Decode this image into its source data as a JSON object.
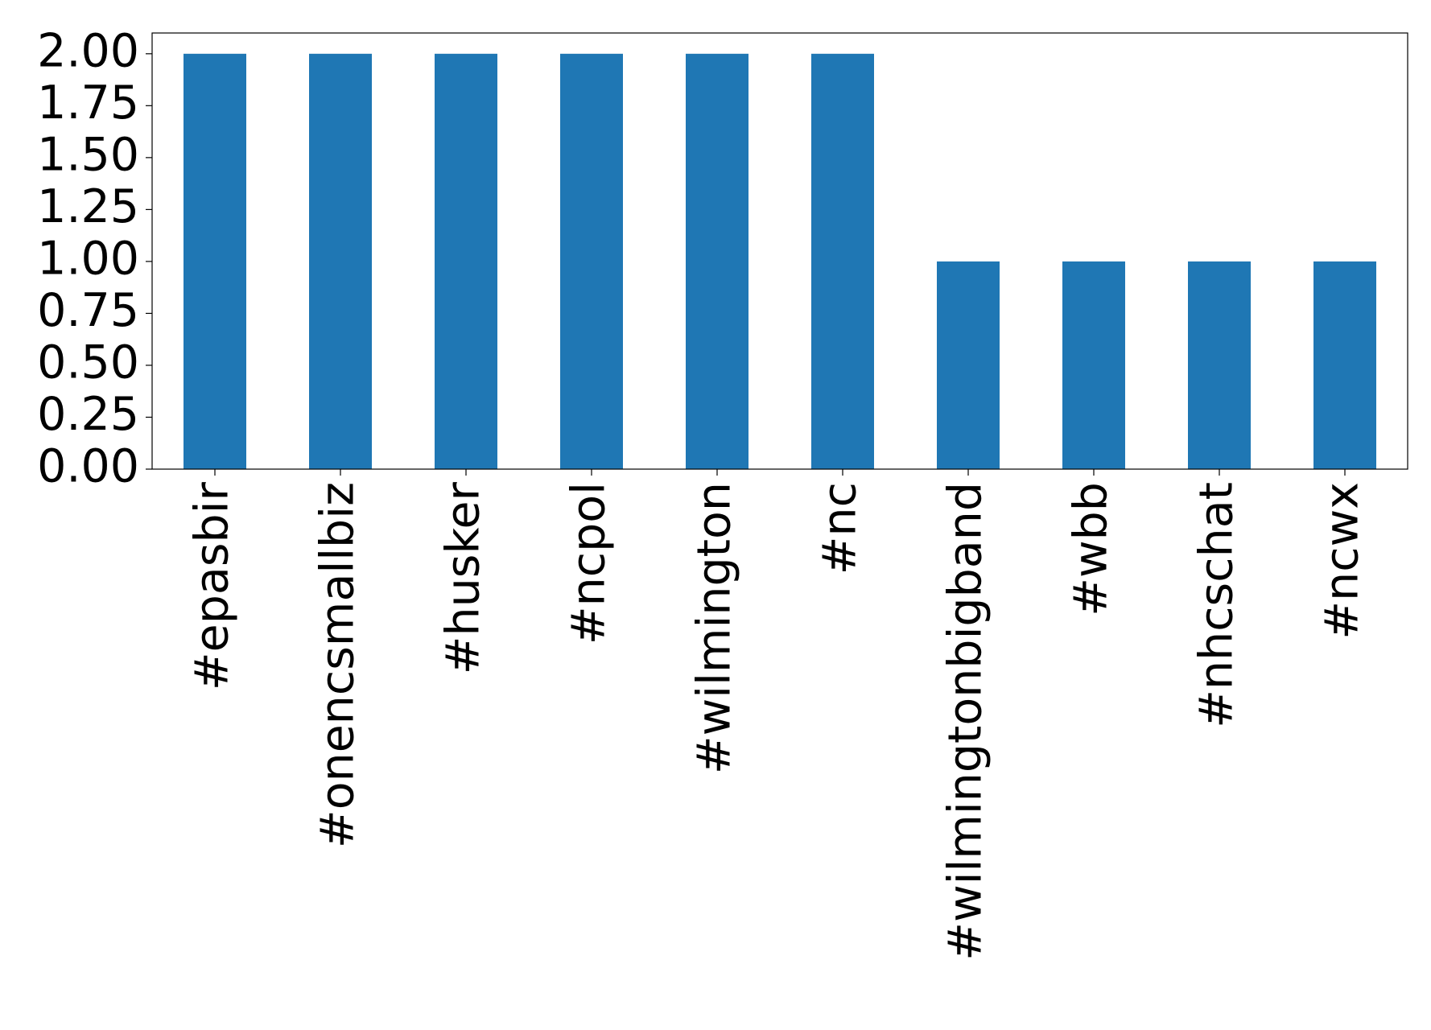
{
  "chart_data": {
    "type": "bar",
    "categories": [
      "#epasbir",
      "#onencsmallbiz",
      "#husker",
      "#ncpol",
      "#wilmington",
      "#nc",
      "#wilmingtonbigband",
      "#wbb",
      "#nhcschat",
      "#ncwx"
    ],
    "values": [
      2,
      2,
      2,
      2,
      2,
      2,
      1,
      1,
      1,
      1
    ],
    "color": "#1f77b4",
    "ylim": [
      0,
      2.1
    ],
    "yticks": [
      {
        "value": 0,
        "label": "0.00"
      },
      {
        "value": 0.25,
        "label": "0.25"
      },
      {
        "value": 0.5,
        "label": "0.50"
      },
      {
        "value": 0.75,
        "label": "0.75"
      },
      {
        "value": 1,
        "label": "1.00"
      },
      {
        "value": 1.25,
        "label": "1.25"
      },
      {
        "value": 1.5,
        "label": "1.50"
      },
      {
        "value": 1.75,
        "label": "1.75"
      },
      {
        "value": 2,
        "label": "2.00"
      }
    ],
    "grid": false
  }
}
